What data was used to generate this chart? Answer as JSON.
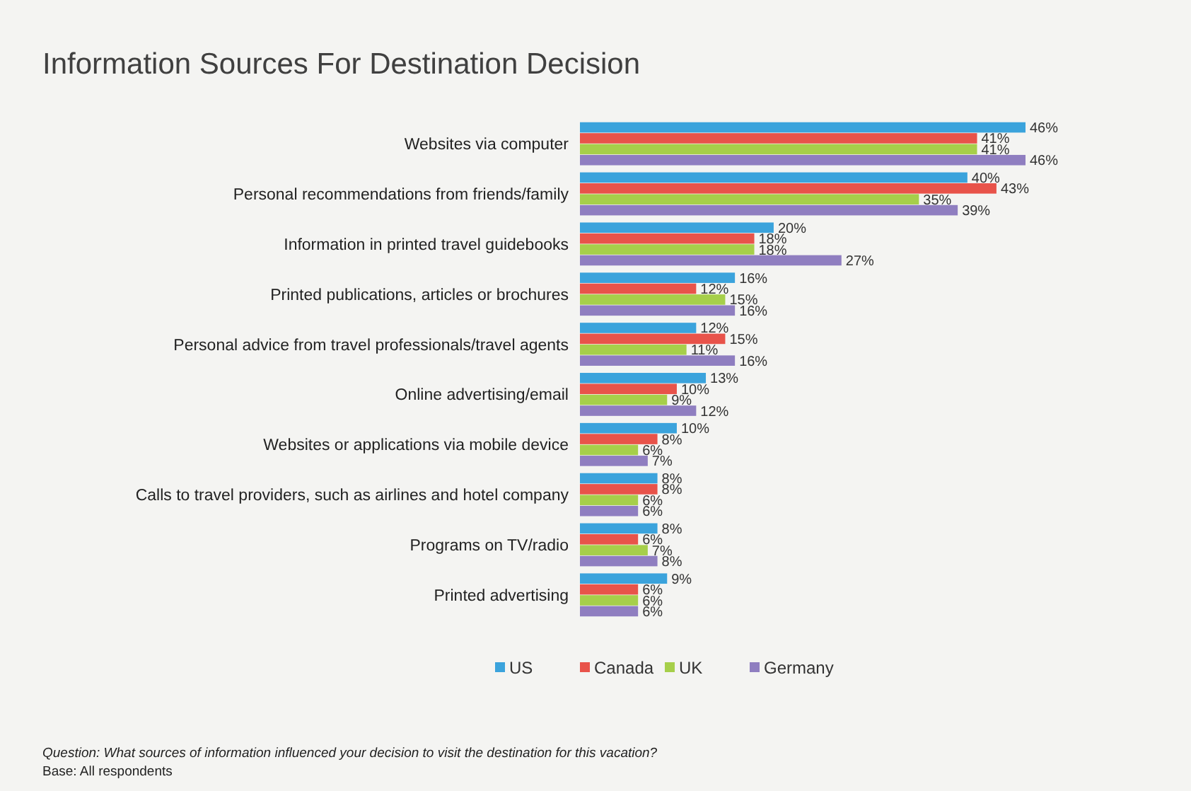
{
  "chart_data": {
    "type": "bar",
    "orientation": "horizontal",
    "title": "Information Sources For Destination Decision",
    "categories": [
      "Websites via computer",
      "Personal recommendations from friends/family",
      "Information in printed travel guidebooks",
      "Printed publications, articles or brochures",
      "Personal advice from travel professionals/travel agents",
      "Online advertising/email",
      "Websites or applications via mobile device",
      "Calls to travel providers, such as airlines and hotel company",
      "Programs on TV/radio",
      "Printed advertising"
    ],
    "series": [
      {
        "name": "US",
        "color": "#3ba3dc",
        "values": [
          46,
          40,
          20,
          16,
          12,
          13,
          10,
          8,
          8,
          9
        ],
        "value_labels": [
          "46%",
          "40%",
          "20%",
          "16%",
          "12%",
          "13%",
          "10%",
          "8%",
          "8%",
          "9%"
        ]
      },
      {
        "name": "Canada",
        "color": "#e8534a",
        "values": [
          41,
          43,
          18,
          12,
          15,
          10,
          8,
          8,
          6,
          6
        ],
        "value_labels": [
          "41%",
          "43%",
          "18%",
          "12%",
          "15%",
          "10%",
          "8%",
          "8%",
          "6%",
          "6%"
        ]
      },
      {
        "name": "UK",
        "color": "#a6cf4a",
        "values": [
          41,
          35,
          18,
          15,
          11,
          9,
          6,
          6,
          7,
          6
        ],
        "value_labels": [
          "41%",
          "35%",
          "18%",
          "15%",
          "11%",
          "9%",
          "6%",
          "6%",
          "7%",
          "6%"
        ]
      },
      {
        "name": "Germany",
        "color": "#8f7ec0",
        "values": [
          46,
          39,
          27,
          16,
          16,
          12,
          7,
          6,
          8,
          6
        ],
        "value_labels": [
          "46%",
          "39%",
          "27%",
          "16%",
          "16%",
          "12%",
          "7%",
          "6%",
          "8%",
          "6%"
        ]
      }
    ],
    "legend": "bottom",
    "annotations": [
      "Question: What sources of information influenced your decision to visit the destination for this vacation?",
      "Base: All respondents"
    ]
  }
}
